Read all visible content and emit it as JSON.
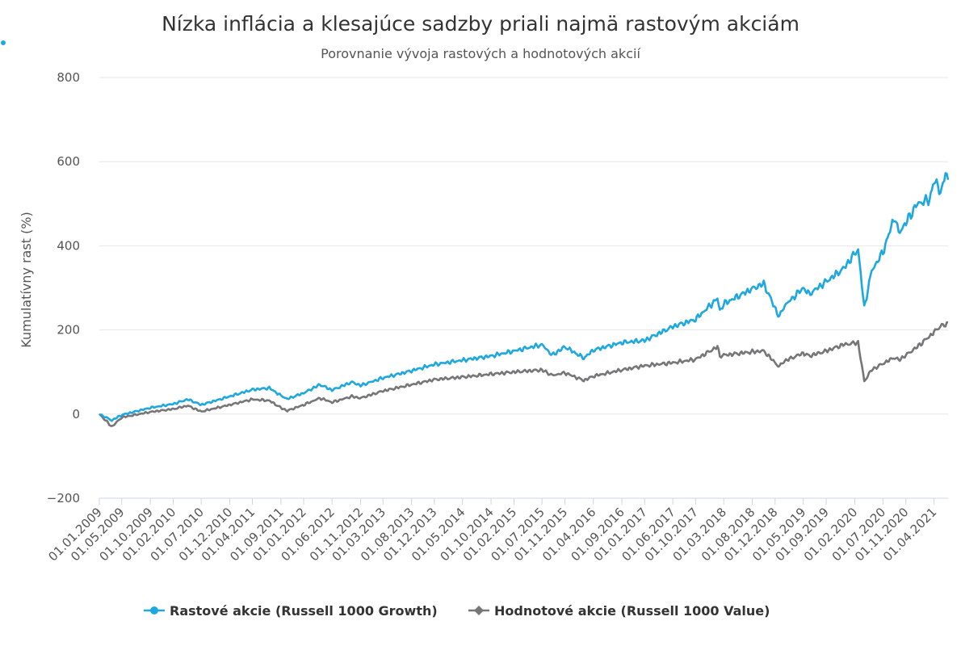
{
  "chart_data": {
    "type": "line",
    "title": "Nízka inflácia a klesajúce sadzby priali najmä rastovým akciám",
    "subtitle": "Porovnanie vývoja rastových a hodnotových akcií",
    "ylabel": "Kumulatívny rast (%)",
    "xlabel": "",
    "ylim": [
      -200,
      800
    ],
    "yticks": [
      -200,
      0,
      200,
      400,
      600,
      800
    ],
    "ytick_labels": [
      "−200",
      "0",
      "200",
      "400",
      "600",
      "800"
    ],
    "grid": "horizontal",
    "legend": "bottom",
    "xlim": [
      "2009-01-01",
      "2021-06-15"
    ],
    "xticks": [
      "01.01.2009",
      "01.05.2009",
      "01.10.2009",
      "01.02.2010",
      "01.07.2010",
      "01.12.2010",
      "01.04.2011",
      "01.09.2011",
      "01.01.2012",
      "01.06.2012",
      "01.11.2012",
      "01.03.2013",
      "01.08.2013",
      "01.12.2013",
      "01.05.2014",
      "01.10.2014",
      "01.02.2015",
      "01.07.2015",
      "01.11.2015",
      "01.04.2016",
      "01.09.2016",
      "01.01.2017",
      "01.06.2017",
      "01.10.2017",
      "01.03.2018",
      "01.08.2018",
      "01.12.2018",
      "01.05.2019",
      "01.09.2019",
      "01.02.2020",
      "01.07.2020",
      "01.11.2020",
      "01.04.2021"
    ],
    "series": [
      {
        "name": "Rastové akcie (Russell 1000 Growth)",
        "color": "#1fa8e0",
        "marker": "circle",
        "points": [
          [
            "2009-01-01",
            0
          ],
          [
            "2009-03-09",
            -15
          ],
          [
            "2009-05-01",
            -2
          ],
          [
            "2009-10-01",
            15
          ],
          [
            "2010-02-01",
            24
          ],
          [
            "2010-04-20",
            35
          ],
          [
            "2010-07-01",
            22
          ],
          [
            "2010-12-01",
            42
          ],
          [
            "2011-04-01",
            58
          ],
          [
            "2011-07-01",
            62
          ],
          [
            "2011-09-01",
            44
          ],
          [
            "2011-10-05",
            36
          ],
          [
            "2012-01-01",
            50
          ],
          [
            "2012-03-28",
            70
          ],
          [
            "2012-06-01",
            57
          ],
          [
            "2012-09-15",
            76
          ],
          [
            "2012-11-01",
            68
          ],
          [
            "2013-03-01",
            86
          ],
          [
            "2013-08-01",
            103
          ],
          [
            "2013-12-01",
            118
          ],
          [
            "2014-05-01",
            128
          ],
          [
            "2014-10-01",
            138
          ],
          [
            "2015-02-01",
            150
          ],
          [
            "2015-07-01",
            165
          ],
          [
            "2015-08-25",
            140
          ],
          [
            "2015-11-01",
            160
          ],
          [
            "2016-02-10",
            133
          ],
          [
            "2016-04-01",
            152
          ],
          [
            "2016-09-01",
            170
          ],
          [
            "2017-01-01",
            175
          ],
          [
            "2017-06-01",
            208
          ],
          [
            "2017-10-01",
            225
          ],
          [
            "2018-01-26",
            275
          ],
          [
            "2018-02-08",
            245
          ],
          [
            "2018-03-01",
            262
          ],
          [
            "2018-08-01",
            298
          ],
          [
            "2018-10-01",
            310
          ],
          [
            "2018-12-24",
            230
          ],
          [
            "2019-01-15",
            255
          ],
          [
            "2019-05-01",
            300
          ],
          [
            "2019-06-01",
            285
          ],
          [
            "2019-09-01",
            315
          ],
          [
            "2019-12-01",
            345
          ],
          [
            "2020-02-19",
            392
          ],
          [
            "2020-03-23",
            252
          ],
          [
            "2020-05-01",
            340
          ],
          [
            "2020-07-01",
            385
          ],
          [
            "2020-09-02",
            470
          ],
          [
            "2020-09-23",
            430
          ],
          [
            "2020-11-01",
            455
          ],
          [
            "2021-01-01",
            500
          ],
          [
            "2021-03-08",
            510
          ],
          [
            "2021-04-01",
            555
          ],
          [
            "2021-05-12",
            528
          ],
          [
            "2021-06-01",
            575
          ],
          [
            "2021-06-15",
            557
          ]
        ]
      },
      {
        "name": "Hodnotové akcie (Russell 1000 Value)",
        "color": "#767679",
        "marker": "diamond",
        "points": [
          [
            "2009-01-01",
            0
          ],
          [
            "2009-03-09",
            -30
          ],
          [
            "2009-05-01",
            -8
          ],
          [
            "2009-10-01",
            5
          ],
          [
            "2010-02-01",
            12
          ],
          [
            "2010-04-20",
            20
          ],
          [
            "2010-07-01",
            6
          ],
          [
            "2010-12-01",
            22
          ],
          [
            "2011-04-01",
            35
          ],
          [
            "2011-07-01",
            32
          ],
          [
            "2011-09-01",
            15
          ],
          [
            "2011-10-05",
            8
          ],
          [
            "2012-01-01",
            22
          ],
          [
            "2012-03-28",
            38
          ],
          [
            "2012-06-01",
            28
          ],
          [
            "2012-09-15",
            42
          ],
          [
            "2012-11-01",
            38
          ],
          [
            "2013-03-01",
            55
          ],
          [
            "2013-08-01",
            70
          ],
          [
            "2013-12-01",
            82
          ],
          [
            "2014-05-01",
            88
          ],
          [
            "2014-10-01",
            95
          ],
          [
            "2015-02-01",
            100
          ],
          [
            "2015-07-01",
            105
          ],
          [
            "2015-08-25",
            92
          ],
          [
            "2015-11-01",
            98
          ],
          [
            "2016-02-10",
            80
          ],
          [
            "2016-04-01",
            90
          ],
          [
            "2016-09-01",
            105
          ],
          [
            "2017-01-01",
            115
          ],
          [
            "2017-06-01",
            122
          ],
          [
            "2017-10-01",
            130
          ],
          [
            "2018-01-26",
            160
          ],
          [
            "2018-02-08",
            138
          ],
          [
            "2018-03-01",
            140
          ],
          [
            "2018-08-01",
            148
          ],
          [
            "2018-10-01",
            150
          ],
          [
            "2018-12-24",
            112
          ],
          [
            "2019-01-15",
            125
          ],
          [
            "2019-05-01",
            145
          ],
          [
            "2019-06-01",
            138
          ],
          [
            "2019-09-01",
            150
          ],
          [
            "2019-12-01",
            165
          ],
          [
            "2020-02-19",
            170
          ],
          [
            "2020-03-23",
            78
          ],
          [
            "2020-05-01",
            105
          ],
          [
            "2020-07-01",
            120
          ],
          [
            "2020-09-02",
            135
          ],
          [
            "2020-09-23",
            128
          ],
          [
            "2020-11-01",
            140
          ],
          [
            "2021-01-01",
            160
          ],
          [
            "2021-03-08",
            185
          ],
          [
            "2021-04-01",
            195
          ],
          [
            "2021-05-12",
            212
          ],
          [
            "2021-06-01",
            210
          ],
          [
            "2021-06-15",
            218
          ]
        ]
      }
    ]
  }
}
